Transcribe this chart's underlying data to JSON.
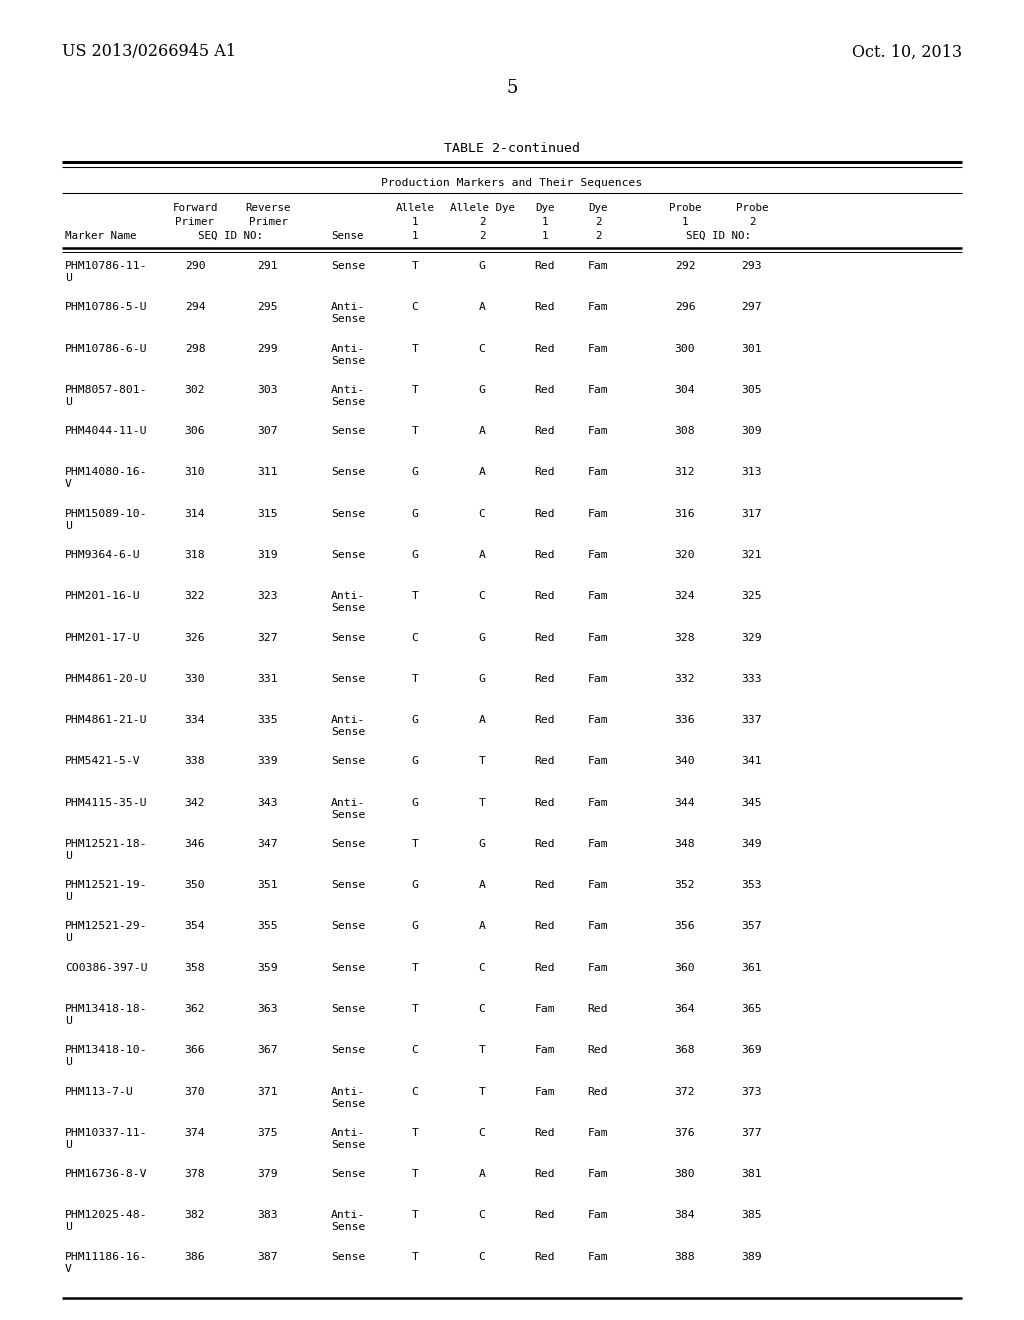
{
  "patent_number": "US 2013/0266945 A1",
  "patent_date": "Oct. 10, 2013",
  "page_number": "5",
  "table_title": "TABLE 2-continued",
  "table_subtitle": "Production Markers and Their Sequences",
  "bg_color": "#ffffff",
  "text_color": "#000000",
  "rows": [
    [
      "PHM10786-11-\nU",
      "290",
      "291",
      "Sense",
      "T",
      "G",
      "Red",
      "Fam",
      "292",
      "293"
    ],
    [
      "PHM10786-5-U",
      "294",
      "295",
      "Anti-\nSense",
      "C",
      "A",
      "Red",
      "Fam",
      "296",
      "297"
    ],
    [
      "PHM10786-6-U",
      "298",
      "299",
      "Anti-\nSense",
      "T",
      "C",
      "Red",
      "Fam",
      "300",
      "301"
    ],
    [
      "PHM8057-801-\nU",
      "302",
      "303",
      "Anti-\nSense",
      "T",
      "G",
      "Red",
      "Fam",
      "304",
      "305"
    ],
    [
      "PHM4044-11-U",
      "306",
      "307",
      "Sense",
      "T",
      "A",
      "Red",
      "Fam",
      "308",
      "309"
    ],
    [
      "PHM14080-16-\nV",
      "310",
      "311",
      "Sense",
      "G",
      "A",
      "Red",
      "Fam",
      "312",
      "313"
    ],
    [
      "PHM15089-10-\nU",
      "314",
      "315",
      "Sense",
      "G",
      "C",
      "Red",
      "Fam",
      "316",
      "317"
    ],
    [
      "PHM9364-6-U",
      "318",
      "319",
      "Sense",
      "G",
      "A",
      "Red",
      "Fam",
      "320",
      "321"
    ],
    [
      "PHM201-16-U",
      "322",
      "323",
      "Anti-\nSense",
      "T",
      "C",
      "Red",
      "Fam",
      "324",
      "325"
    ],
    [
      "PHM201-17-U",
      "326",
      "327",
      "Sense",
      "C",
      "G",
      "Red",
      "Fam",
      "328",
      "329"
    ],
    [
      "PHM4861-20-U",
      "330",
      "331",
      "Sense",
      "T",
      "G",
      "Red",
      "Fam",
      "332",
      "333"
    ],
    [
      "PHM4861-21-U",
      "334",
      "335",
      "Anti-\nSense",
      "G",
      "A",
      "Red",
      "Fam",
      "336",
      "337"
    ],
    [
      "PHM5421-5-V",
      "338",
      "339",
      "Sense",
      "G",
      "T",
      "Red",
      "Fam",
      "340",
      "341"
    ],
    [
      "PHM4115-35-U",
      "342",
      "343",
      "Anti-\nSense",
      "G",
      "T",
      "Red",
      "Fam",
      "344",
      "345"
    ],
    [
      "PHM12521-18-\nU",
      "346",
      "347",
      "Sense",
      "T",
      "G",
      "Red",
      "Fam",
      "348",
      "349"
    ],
    [
      "PHM12521-19-\nU",
      "350",
      "351",
      "Sense",
      "G",
      "A",
      "Red",
      "Fam",
      "352",
      "353"
    ],
    [
      "PHM12521-29-\nU",
      "354",
      "355",
      "Sense",
      "G",
      "A",
      "Red",
      "Fam",
      "356",
      "357"
    ],
    [
      "CO0386-397-U",
      "358",
      "359",
      "Sense",
      "T",
      "C",
      "Red",
      "Fam",
      "360",
      "361"
    ],
    [
      "PHM13418-18-\nU",
      "362",
      "363",
      "Sense",
      "T",
      "C",
      "Fam",
      "Red",
      "364",
      "365"
    ],
    [
      "PHM13418-10-\nU",
      "366",
      "367",
      "Sense",
      "C",
      "T",
      "Fam",
      "Red",
      "368",
      "369"
    ],
    [
      "PHM113-7-U",
      "370",
      "371",
      "Anti-\nSense",
      "C",
      "T",
      "Fam",
      "Red",
      "372",
      "373"
    ],
    [
      "PHM10337-11-\nU",
      "374",
      "375",
      "Anti-\nSense",
      "T",
      "C",
      "Red",
      "Fam",
      "376",
      "377"
    ],
    [
      "PHM16736-8-V",
      "378",
      "379",
      "Sense",
      "T",
      "A",
      "Red",
      "Fam",
      "380",
      "381"
    ],
    [
      "PHM12025-48-\nU",
      "382",
      "383",
      "Anti-\nSense",
      "T",
      "C",
      "Red",
      "Fam",
      "384",
      "385"
    ],
    [
      "PHM11186-16-\nV",
      "386",
      "387",
      "Sense",
      "T",
      "C",
      "Red",
      "Fam",
      "388",
      "389"
    ]
  ]
}
